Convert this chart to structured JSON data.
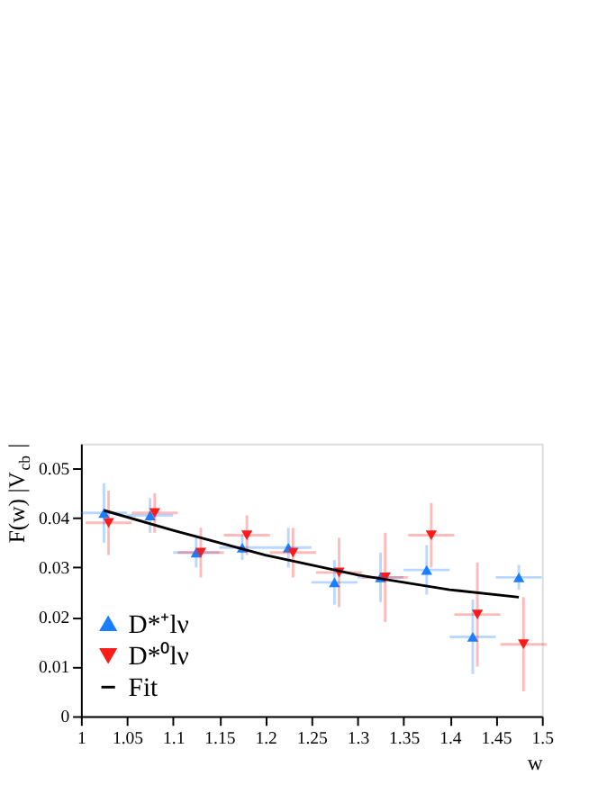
{
  "chart_data": {
    "type": "scatter",
    "xlabel": "w",
    "ylabel": "F(w) |V$_{cb}$|",
    "xlim": [
      1,
      1.5
    ],
    "xticks": [
      1,
      1.05,
      1.1,
      1.15,
      1.2,
      1.25,
      1.3,
      1.35,
      1.4,
      1.45,
      1.5
    ],
    "ylim": [
      0,
      0.055
    ],
    "yticks": [
      0,
      0.01,
      0.02,
      0.03,
      0.04,
      0.05
    ],
    "grid": false,
    "legend": "bottom left",
    "series": [
      {
        "name": "D*⁺lν",
        "type": "scatter",
        "marker": "triangle",
        "color": "#1a7fff",
        "x": [
          1.025,
          1.075,
          1.125,
          1.175,
          1.225,
          1.275,
          1.325,
          1.375,
          1.425,
          1.475
        ],
        "values": [
          0.041,
          0.0405,
          0.033,
          0.034,
          0.034,
          0.027,
          0.028,
          0.0295,
          0.016,
          0.028
        ],
        "errors": [
          0.006,
          0.0035,
          0.003,
          0.0025,
          0.004,
          0.0045,
          0.005,
          0.005,
          0.0075,
          0.0025
        ],
        "xerrors": [
          0.025,
          0.025,
          0.025,
          0.025,
          0.025,
          0.025,
          0.025,
          0.025,
          0.025,
          0.025
        ]
      },
      {
        "name": "D*⁰lν",
        "type": "scatter",
        "marker": "triangle-down",
        "color": "#ff1a1a",
        "x": [
          1.03,
          1.08,
          1.13,
          1.18,
          1.23,
          1.28,
          1.33,
          1.38,
          1.43,
          1.48
        ],
        "values": [
          0.039,
          0.041,
          0.033,
          0.0365,
          0.033,
          0.029,
          0.028,
          0.0365,
          0.0205,
          0.0145
        ],
        "errors": [
          0.0065,
          0.004,
          0.005,
          0.004,
          0.005,
          0.007,
          0.009,
          0.0065,
          0.0105,
          0.0095
        ],
        "xerrors": [
          0.025,
          0.025,
          0.025,
          0.025,
          0.025,
          0.025,
          0.025,
          0.025,
          0.025,
          0.025
        ]
      },
      {
        "name": "Fit",
        "type": "line",
        "color": "#000000",
        "line_style": "solid",
        "x": [
          1.025,
          1.1,
          1.2,
          1.3,
          1.4,
          1.475
        ],
        "values": [
          0.0415,
          0.0375,
          0.0325,
          0.0285,
          0.0255,
          0.024
        ]
      }
    ]
  }
}
